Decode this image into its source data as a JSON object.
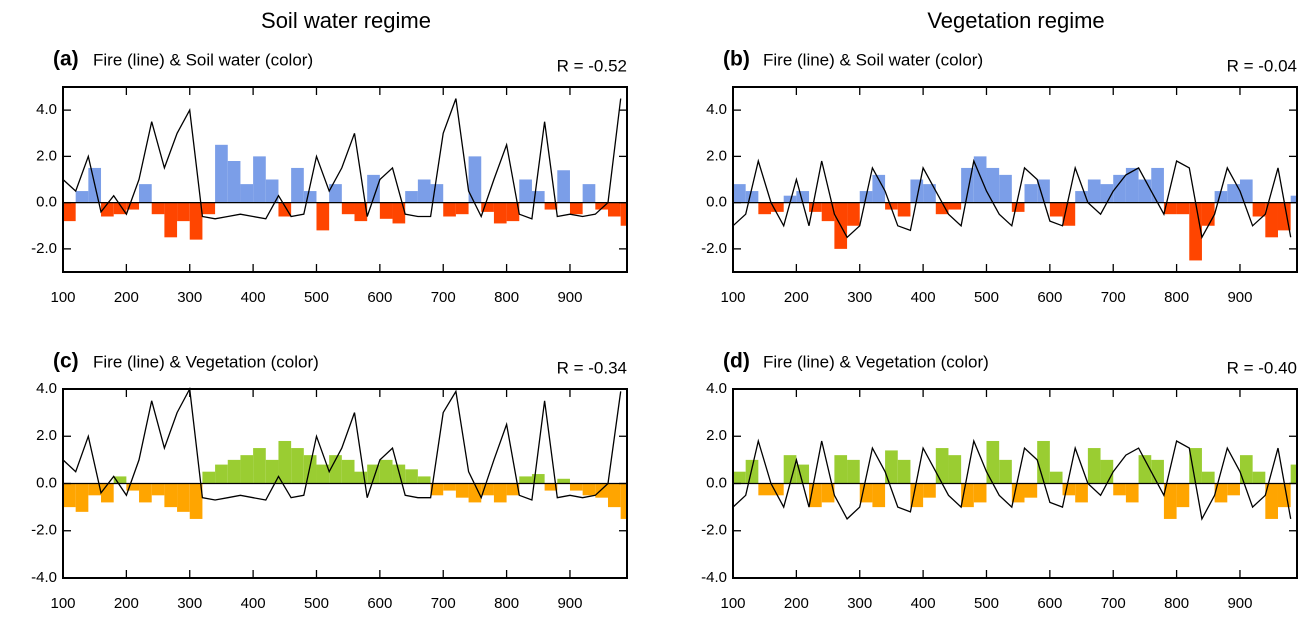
{
  "column_titles": [
    "Soil water regime",
    "Vegetation regime"
  ],
  "chart_data": [
    {
      "type": "fill_line",
      "panel_label": "(a)",
      "title": "Fire (line) & Soil water (color)",
      "r_label": "R = -0.52",
      "x": [
        100,
        120,
        140,
        160,
        180,
        200,
        220,
        240,
        260,
        280,
        300,
        320,
        340,
        360,
        380,
        400,
        420,
        440,
        460,
        480,
        500,
        520,
        540,
        560,
        580,
        600,
        620,
        640,
        660,
        680,
        700,
        720,
        740,
        760,
        780,
        800,
        820,
        840,
        860,
        880,
        900,
        920,
        940,
        960,
        980
      ],
      "series": [
        {
          "style": "fill",
          "pos_color": "#7b9ee8",
          "neg_color": "#ff4500",
          "values": [
            -0.8,
            0.5,
            1.5,
            -0.6,
            -0.5,
            -0.3,
            0.8,
            -0.5,
            -1.5,
            -0.8,
            -1.6,
            -0.5,
            2.5,
            1.8,
            0.8,
            2.0,
            1.0,
            -0.6,
            1.5,
            0.5,
            -1.2,
            0.8,
            -0.5,
            -0.8,
            1.2,
            -0.7,
            -0.9,
            0.5,
            1.0,
            0.8,
            -0.6,
            -0.5,
            2.0,
            -0.4,
            -0.9,
            -0.8,
            1.0,
            0.5,
            -0.3,
            1.4,
            -0.5,
            0.8,
            -0.3,
            -0.6,
            -1.0
          ]
        },
        {
          "style": "line",
          "color": "#000000",
          "values": [
            1.0,
            0.5,
            2.0,
            -0.4,
            0.3,
            -0.5,
            1.0,
            3.5,
            1.5,
            3.0,
            4.0,
            -0.6,
            -0.7,
            -0.6,
            -0.5,
            -0.6,
            -0.7,
            0.3,
            -0.6,
            -0.5,
            2.0,
            0.5,
            1.5,
            3.0,
            -0.6,
            1.0,
            1.5,
            -0.5,
            -0.6,
            -0.6,
            3.0,
            4.5,
            0.5,
            -0.6,
            1.0,
            2.5,
            -0.5,
            -0.7,
            3.5,
            -0.6,
            -0.5,
            -0.6,
            -0.5,
            0.0,
            4.5
          ]
        }
      ],
      "xlim": [
        100,
        990
      ],
      "xticks": [
        100,
        200,
        300,
        400,
        500,
        600,
        700,
        800,
        900
      ],
      "ylim": [
        -3,
        5
      ],
      "yticks": [
        {
          "value": -2,
          "label": "-2.0"
        },
        {
          "value": 0,
          "label": "0.0"
        },
        {
          "value": 2,
          "label": "2.0"
        },
        {
          "value": 4,
          "label": "4.0"
        }
      ]
    },
    {
      "type": "fill_line",
      "panel_label": "(b)",
      "title": "Fire (line) & Soil water (color)",
      "r_label": "R = -0.04",
      "x": [
        100,
        120,
        140,
        160,
        180,
        200,
        220,
        240,
        260,
        280,
        300,
        320,
        340,
        360,
        380,
        400,
        420,
        440,
        460,
        480,
        500,
        520,
        540,
        560,
        580,
        600,
        620,
        640,
        660,
        680,
        700,
        720,
        740,
        760,
        780,
        800,
        820,
        840,
        860,
        880,
        900,
        920,
        940,
        960,
        980
      ],
      "series": [
        {
          "style": "fill",
          "pos_color": "#7b9ee8",
          "neg_color": "#ff4500",
          "values": [
            0.8,
            0.5,
            -0.5,
            -0.4,
            0.3,
            0.5,
            -0.4,
            -0.8,
            -2.0,
            -1.0,
            0.5,
            1.2,
            -0.3,
            -0.6,
            1.0,
            0.8,
            -0.5,
            -0.3,
            1.5,
            2.0,
            1.5,
            1.2,
            -0.4,
            0.8,
            1.0,
            -0.6,
            -1.0,
            0.5,
            1.0,
            0.8,
            1.2,
            1.5,
            1.0,
            1.5,
            -0.5,
            -0.5,
            -2.5,
            -1.0,
            0.5,
            0.8,
            1.0,
            -0.6,
            -1.5,
            -1.2,
            0.3
          ]
        },
        {
          "style": "line",
          "color": "#000000",
          "values": [
            -1.0,
            -0.5,
            1.8,
            0.0,
            -1.0,
            1.0,
            -1.0,
            1.8,
            -0.5,
            -1.5,
            -1.0,
            1.5,
            0.5,
            -1.0,
            -1.2,
            1.5,
            0.5,
            -0.5,
            -1.0,
            1.8,
            0.5,
            -0.5,
            -1.0,
            1.5,
            1.0,
            -0.8,
            -1.0,
            1.5,
            0.0,
            -0.5,
            0.5,
            1.2,
            1.5,
            0.5,
            -0.5,
            1.8,
            1.5,
            -1.5,
            -0.5,
            1.5,
            0.5,
            -1.0,
            -0.5,
            1.5,
            -1.5
          ]
        }
      ],
      "xlim": [
        100,
        990
      ],
      "xticks": [
        100,
        200,
        300,
        400,
        500,
        600,
        700,
        800,
        900
      ],
      "ylim": [
        -3,
        5
      ],
      "yticks": [
        {
          "value": -2,
          "label": "-2.0"
        },
        {
          "value": 0,
          "label": "0.0"
        },
        {
          "value": 2,
          "label": "2.0"
        },
        {
          "value": 4,
          "label": "4.0"
        }
      ]
    },
    {
      "type": "fill_line",
      "panel_label": "(c)",
      "title": "Fire (line) & Vegetation (color)",
      "r_label": "R = -0.34",
      "x": [
        100,
        120,
        140,
        160,
        180,
        200,
        220,
        240,
        260,
        280,
        300,
        320,
        340,
        360,
        380,
        400,
        420,
        440,
        460,
        480,
        500,
        520,
        540,
        560,
        580,
        600,
        620,
        640,
        660,
        680,
        700,
        720,
        740,
        760,
        780,
        800,
        820,
        840,
        860,
        880,
        900,
        920,
        940,
        960,
        980
      ],
      "series": [
        {
          "style": "fill",
          "pos_color": "#9acd32",
          "neg_color": "#ffa500",
          "values": [
            -1.0,
            -1.2,
            -0.5,
            -0.8,
            0.3,
            -0.3,
            -0.8,
            -0.5,
            -1.0,
            -1.2,
            -1.5,
            0.5,
            0.8,
            1.0,
            1.2,
            1.5,
            1.0,
            1.8,
            1.5,
            1.2,
            0.8,
            1.2,
            1.0,
            0.5,
            0.8,
            1.0,
            0.8,
            0.6,
            0.3,
            -0.5,
            -0.3,
            -0.6,
            -0.8,
            -0.5,
            -0.8,
            -0.5,
            0.3,
            0.4,
            -0.3,
            0.2,
            -0.3,
            -0.5,
            -0.6,
            -1.0,
            -1.5
          ]
        },
        {
          "style": "line",
          "color": "#000000",
          "values": [
            1.0,
            0.5,
            2.0,
            -0.4,
            0.3,
            -0.5,
            1.0,
            3.5,
            1.5,
            3.0,
            4.0,
            -0.6,
            -0.7,
            -0.6,
            -0.5,
            -0.6,
            -0.7,
            0.3,
            -0.6,
            -0.5,
            2.0,
            0.5,
            1.5,
            3.0,
            -0.6,
            1.0,
            1.5,
            -0.5,
            -0.6,
            -0.6,
            3.0,
            3.9,
            0.5,
            -0.6,
            1.0,
            2.5,
            -0.5,
            -0.7,
            3.5,
            -0.6,
            -0.5,
            -0.6,
            -0.5,
            0.0,
            3.9
          ]
        }
      ],
      "xlim": [
        100,
        990
      ],
      "xticks": [
        100,
        200,
        300,
        400,
        500,
        600,
        700,
        800,
        900
      ],
      "ylim": [
        -4,
        4
      ],
      "yticks": [
        {
          "value": -4,
          "label": "-4.0"
        },
        {
          "value": -2,
          "label": "-2.0"
        },
        {
          "value": 0,
          "label": "0.0"
        },
        {
          "value": 2,
          "label": "2.0"
        },
        {
          "value": 4,
          "label": "4.0"
        }
      ]
    },
    {
      "type": "fill_line",
      "panel_label": "(d)",
      "title": "Fire (line) & Vegetation (color)",
      "r_label": "R = -0.40",
      "x": [
        100,
        120,
        140,
        160,
        180,
        200,
        220,
        240,
        260,
        280,
        300,
        320,
        340,
        360,
        380,
        400,
        420,
        440,
        460,
        480,
        500,
        520,
        540,
        560,
        580,
        600,
        620,
        640,
        660,
        680,
        700,
        720,
        740,
        760,
        780,
        800,
        820,
        840,
        860,
        880,
        900,
        920,
        940,
        960,
        980
      ],
      "series": [
        {
          "style": "fill",
          "pos_color": "#9acd32",
          "neg_color": "#ffa500",
          "values": [
            0.5,
            1.0,
            -0.5,
            -0.5,
            1.2,
            0.8,
            -1.0,
            -0.8,
            1.2,
            1.0,
            -0.8,
            -1.0,
            1.4,
            1.0,
            -1.0,
            -0.6,
            1.5,
            1.2,
            -1.0,
            -0.8,
            1.8,
            1.0,
            -0.8,
            -0.6,
            1.8,
            0.5,
            -0.5,
            -0.8,
            1.5,
            1.0,
            -0.5,
            -0.8,
            1.2,
            1.0,
            -1.5,
            -1.0,
            1.5,
            0.5,
            -0.8,
            -0.5,
            1.2,
            0.5,
            -1.5,
            -1.0,
            0.8
          ]
        },
        {
          "style": "line",
          "color": "#000000",
          "values": [
            -1.0,
            -0.5,
            1.8,
            0.0,
            -1.0,
            1.0,
            -1.0,
            1.8,
            -0.5,
            -1.5,
            -1.0,
            1.5,
            0.5,
            -1.0,
            -1.2,
            1.5,
            0.5,
            -0.5,
            -1.0,
            1.8,
            0.5,
            -0.5,
            -1.0,
            1.5,
            1.0,
            -0.8,
            -1.0,
            1.5,
            0.0,
            -0.5,
            0.5,
            1.2,
            1.5,
            0.5,
            -0.5,
            1.8,
            1.5,
            -1.5,
            -0.5,
            1.5,
            0.5,
            -1.0,
            -0.5,
            1.5,
            -1.5
          ]
        }
      ],
      "xlim": [
        100,
        990
      ],
      "xticks": [
        100,
        200,
        300,
        400,
        500,
        600,
        700,
        800,
        900
      ],
      "ylim": [
        -4,
        4
      ],
      "yticks": [
        {
          "value": -4,
          "label": "-4.0"
        },
        {
          "value": -2,
          "label": "-2.0"
        },
        {
          "value": 0,
          "label": "0.0"
        },
        {
          "value": 2,
          "label": "2.0"
        },
        {
          "value": 4,
          "label": "4.0"
        }
      ]
    }
  ]
}
